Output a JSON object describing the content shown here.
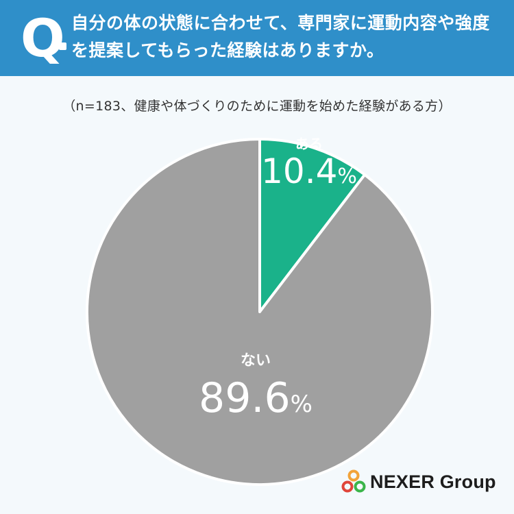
{
  "header": {
    "q_mark": "Q",
    "question": "自分の体の状態に合わせて、専門家に運動内容や強度を提案してもらった経験はありますか。"
  },
  "note": "（n=183、健康や体づくりのために運動を始めた経験がある方）",
  "chart_data": {
    "type": "pie",
    "slices": [
      {
        "label": "ある",
        "value": 10.4,
        "color": "#1ab28a"
      },
      {
        "label": "ない",
        "value": 89.6,
        "color": "#a0a0a0"
      }
    ],
    "unit": "%"
  },
  "logo": {
    "text": "NEXER Group"
  }
}
